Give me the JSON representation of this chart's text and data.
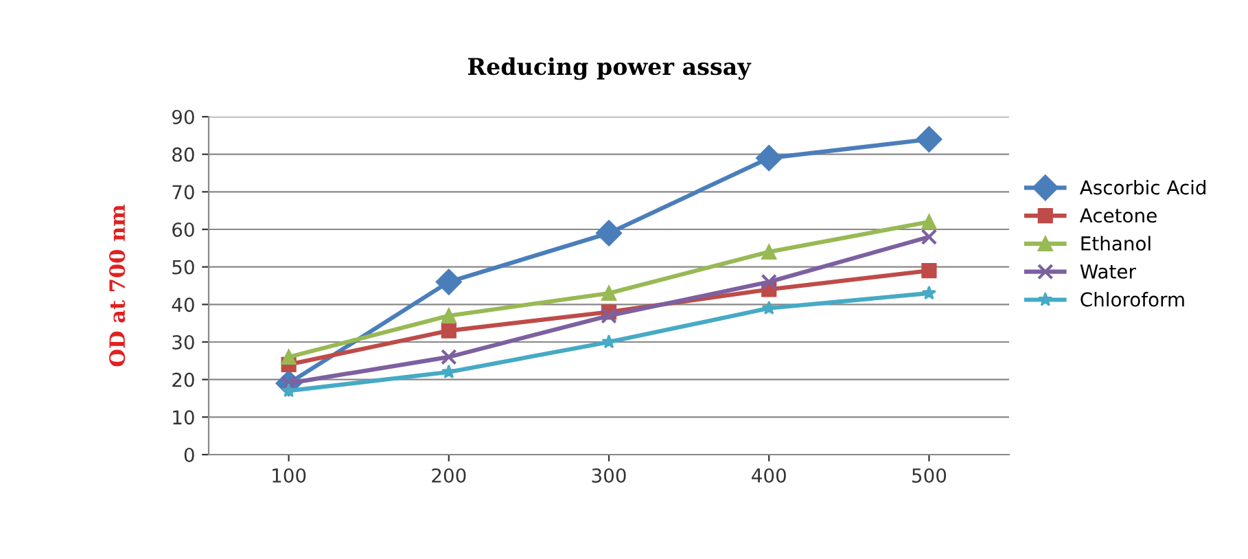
{
  "chart_data": {
    "type": "line",
    "title": "Reducing power assay",
    "ylabel": "OD at 700 nm",
    "categories": [
      "100",
      "200",
      "300",
      "400",
      "500"
    ],
    "series": [
      {
        "name": "Ascorbic Acid",
        "color": "#4a7ebb",
        "marker": "diamond",
        "values": [
          19,
          46,
          59,
          79,
          84
        ]
      },
      {
        "name": "Acetone",
        "color": "#be4b48",
        "marker": "square",
        "values": [
          24,
          33,
          38,
          44,
          49
        ]
      },
      {
        "name": "Ethanol",
        "color": "#98b954",
        "marker": "triangle",
        "values": [
          26,
          37,
          43,
          54,
          62
        ]
      },
      {
        "name": "Water",
        "color": "#7d60a0",
        "marker": "cross",
        "values": [
          19,
          26,
          37,
          46,
          58
        ]
      },
      {
        "name": "Chloroform",
        "color": "#46aac5",
        "marker": "star",
        "values": [
          17,
          22,
          30,
          39,
          43
        ]
      }
    ],
    "ylim": [
      0,
      90
    ],
    "yticks": [
      0,
      10,
      20,
      30,
      40,
      50,
      60,
      70,
      80,
      90
    ],
    "grid": "y",
    "legend": "right",
    "line_style": "solid"
  }
}
